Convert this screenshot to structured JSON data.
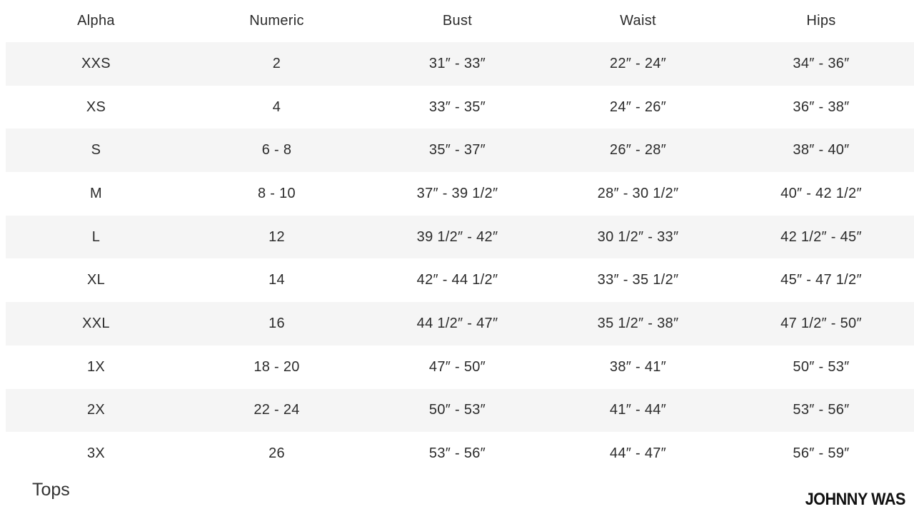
{
  "table": {
    "headers": [
      "Alpha",
      "Numeric",
      "Bust",
      "Waist",
      "Hips"
    ],
    "rows": [
      [
        "XXS",
        "2",
        "31″ - 33″",
        "22″ - 24″",
        "34″ - 36″"
      ],
      [
        "XS",
        "4",
        "33″ - 35″",
        "24″ - 26″",
        "36″ - 38″"
      ],
      [
        "S",
        "6 - 8",
        "35″ - 37″",
        "26″ - 28″",
        "38″ - 40″"
      ],
      [
        "M",
        "8 - 10",
        "37″ - 39 1/2″",
        "28″ - 30 1/2″",
        "40″ - 42 1/2″"
      ],
      [
        "L",
        "12",
        "39 1/2″ - 42″",
        "30 1/2″ - 33″",
        "42 1/2″ - 45″"
      ],
      [
        "XL",
        "14",
        "42″ - 44 1/2″",
        "33″ - 35 1/2″",
        "45″ - 47 1/2″"
      ],
      [
        "XXL",
        "16",
        "44 1/2″ - 47″",
        "35 1/2″ - 38″",
        "47 1/2″ - 50″"
      ],
      [
        "1X",
        "18 - 20",
        "47″ - 50″",
        "38″ - 41″",
        "50″ - 53″"
      ],
      [
        "2X",
        "22 - 24",
        "50″ - 53″",
        "41″ - 44″",
        "53″ - 56″"
      ],
      [
        "3X",
        "26",
        "53″ - 56″",
        "44″ - 47″",
        "56″ - 59″"
      ]
    ]
  },
  "footer": {
    "section_label": "Tops",
    "brand": "JOHNNY WAS"
  },
  "colors": {
    "stripe": "#f5f5f5",
    "text": "#2b2b2b"
  }
}
